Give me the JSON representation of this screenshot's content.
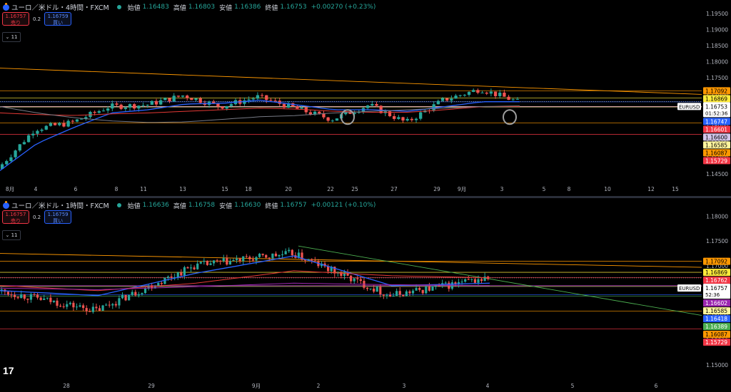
{
  "colors": {
    "up": "#26a69a",
    "down": "#ef5350",
    "ma_blue": "#2962ff",
    "ma_red": "#e53935",
    "ma_gray": "#787b86",
    "ma_purple": "#9c27b0",
    "trend": "#4caf50"
  },
  "panes": [
    {
      "symbol": "ユーロ／米ドル・4時間・FXCM",
      "ohlc": [
        {
          "label": "始値",
          "value": "1.16483"
        },
        {
          "label": "高値",
          "value": "1.16803"
        },
        {
          "label": "安値",
          "value": "1.16386"
        },
        {
          "label": "終値",
          "value": "1.16753"
        },
        {
          "label": "",
          "value": "+0.00270 (+0.23%)"
        }
      ],
      "sell": {
        "price": "1.16757",
        "label": "売り"
      },
      "buy": {
        "price": "1.16759",
        "label": "買い"
      },
      "spread": "0.2",
      "collapse": "11",
      "symbol_tag": "EURUSD",
      "timer": "01:52:36",
      "price_axis": [
        "1.19500",
        "1.19000",
        "1.18500",
        "1.18000",
        "1.17500",
        "1.17000",
        "1.16500",
        "1.16000",
        "1.15500",
        "1.15000",
        "1.14500"
      ],
      "time_axis": [
        "8月",
        "4",
        "6",
        "8",
        "11",
        "13",
        "15",
        "18",
        "20",
        "22",
        "25",
        "27",
        "29",
        "9月",
        "3",
        "5",
        "8",
        "10",
        "12",
        "15"
      ],
      "levels": [
        {
          "price": "1.17092",
          "color": "#ff9800"
        },
        {
          "price": "1.16869",
          "color": "#ffeb3b"
        },
        {
          "price": "1.16753",
          "color": "#ffffff"
        },
        {
          "price": "1.16747",
          "color": "#2962ff"
        },
        {
          "price": "1.16601",
          "color": "#f23645"
        },
        {
          "price": "1.16600",
          "color": "#d1c4e9"
        },
        {
          "price": "1.16585",
          "color": "#fff59d"
        },
        {
          "price": "1.16087",
          "color": "#ff9800"
        },
        {
          "price": "1.15729",
          "color": "#f23645"
        }
      ]
    },
    {
      "symbol": "ユーロ／米ドル・1時間・FXCM",
      "ohlc": [
        {
          "label": "始値",
          "value": "1.16636"
        },
        {
          "label": "高値",
          "value": "1.16758"
        },
        {
          "label": "安値",
          "value": "1.16630"
        },
        {
          "label": "終値",
          "value": "1.16757"
        },
        {
          "label": "",
          "value": "+0.00121 (+0.10%)"
        }
      ],
      "sell": {
        "price": "1.16757",
        "label": "売り"
      },
      "buy": {
        "price": "1.16759",
        "label": "買い"
      },
      "spread": "0.2",
      "collapse": "11",
      "symbol_tag": "EURUSD",
      "timer": "52:36",
      "price_axis": [
        "1.18000",
        "1.17500",
        "1.17000",
        "1.16500",
        "1.16000",
        "1.15500",
        "1.15000"
      ],
      "time_axis": [
        "28",
        "29",
        "9月",
        "2",
        "3",
        "4",
        "5",
        "6"
      ],
      "levels": [
        {
          "price": "1.17092",
          "color": "#ff9800"
        },
        {
          "price": "1.16869",
          "color": "#ffeb3b"
        },
        {
          "price": "1.16762",
          "color": "#f23645"
        },
        {
          "price": "1.16757",
          "color": "#ffffff"
        },
        {
          "price": "1.16602",
          "color": "#9c27b0"
        },
        {
          "price": "1.16585",
          "color": "#fff59d"
        },
        {
          "price": "1.16418",
          "color": "#2962ff"
        },
        {
          "price": "1.16389",
          "color": "#4caf50"
        },
        {
          "price": "1.16087",
          "color": "#ff9800"
        },
        {
          "price": "1.15729",
          "color": "#f23645"
        }
      ]
    }
  ],
  "chart_data": [
    {
      "type": "candlestick",
      "title": "ユーロ／米ドル・4時間・FXCM",
      "ylim": [
        1.1425,
        1.1975
      ],
      "x": [
        "8月",
        "4",
        "6",
        "8",
        "11",
        "13",
        "15",
        "18",
        "20",
        "22",
        "25",
        "27",
        "29",
        "9月",
        "3"
      ],
      "series": [
        {
          "name": "",
          "type": "candles",
          "close": [
            1.1465,
            1.159,
            1.161,
            1.166,
            1.1665,
            1.1695,
            1.166,
            1.169,
            1.1655,
            1.162,
            1.1665,
            1.161,
            1.168,
            1.1715,
            1.1675
          ]
        },
        {
          "name": "",
          "type": "ma",
          "values": [
            1.146,
            1.1545,
            1.1595,
            1.164,
            1.165,
            1.1668,
            1.167,
            1.168,
            1.1665,
            1.165,
            1.165,
            1.1645,
            1.166,
            1.1675,
            1.1675
          ]
        },
        {
          "name": "",
          "type": "ma",
          "values": [
            1.164,
            1.1635,
            1.1632,
            1.1637,
            1.164,
            1.1645,
            1.165,
            1.1655,
            1.1652,
            1.1645,
            1.1642,
            1.1642,
            1.165,
            1.166,
            1.166
          ]
        },
        {
          "name": "",
          "type": "ma",
          "values": [
            1.166,
            1.164,
            1.1625,
            1.1615,
            1.161,
            1.1612,
            1.162,
            1.1628,
            1.1632,
            1.164,
            1.1645,
            1.165,
            1.1655,
            1.166,
            1.1662
          ]
        }
      ]
    },
    {
      "type": "candlestick",
      "title": "ユーロ／米ドル・1時間・FXCM",
      "ylim": [
        1.147,
        1.1825
      ],
      "x": [
        "28",
        "29",
        "9月",
        "2",
        "3",
        "4"
      ],
      "series": [
        {
          "name": "",
          "type": "candles",
          "close": [
            1.165,
            1.161,
            1.17,
            1.1725,
            1.164,
            1.1675
          ]
        },
        {
          "name": "",
          "type": "ma",
          "values": [
            1.165,
            1.164,
            1.1685,
            1.172,
            1.166,
            1.1665
          ]
        },
        {
          "name": "",
          "type": "ma",
          "values": [
            1.166,
            1.165,
            1.1665,
            1.169,
            1.168,
            1.1676
          ]
        },
        {
          "name": "",
          "type": "ma",
          "values": [
            1.1655,
            1.1652,
            1.1658,
            1.1665,
            1.1662,
            1.166
          ]
        }
      ]
    }
  ]
}
